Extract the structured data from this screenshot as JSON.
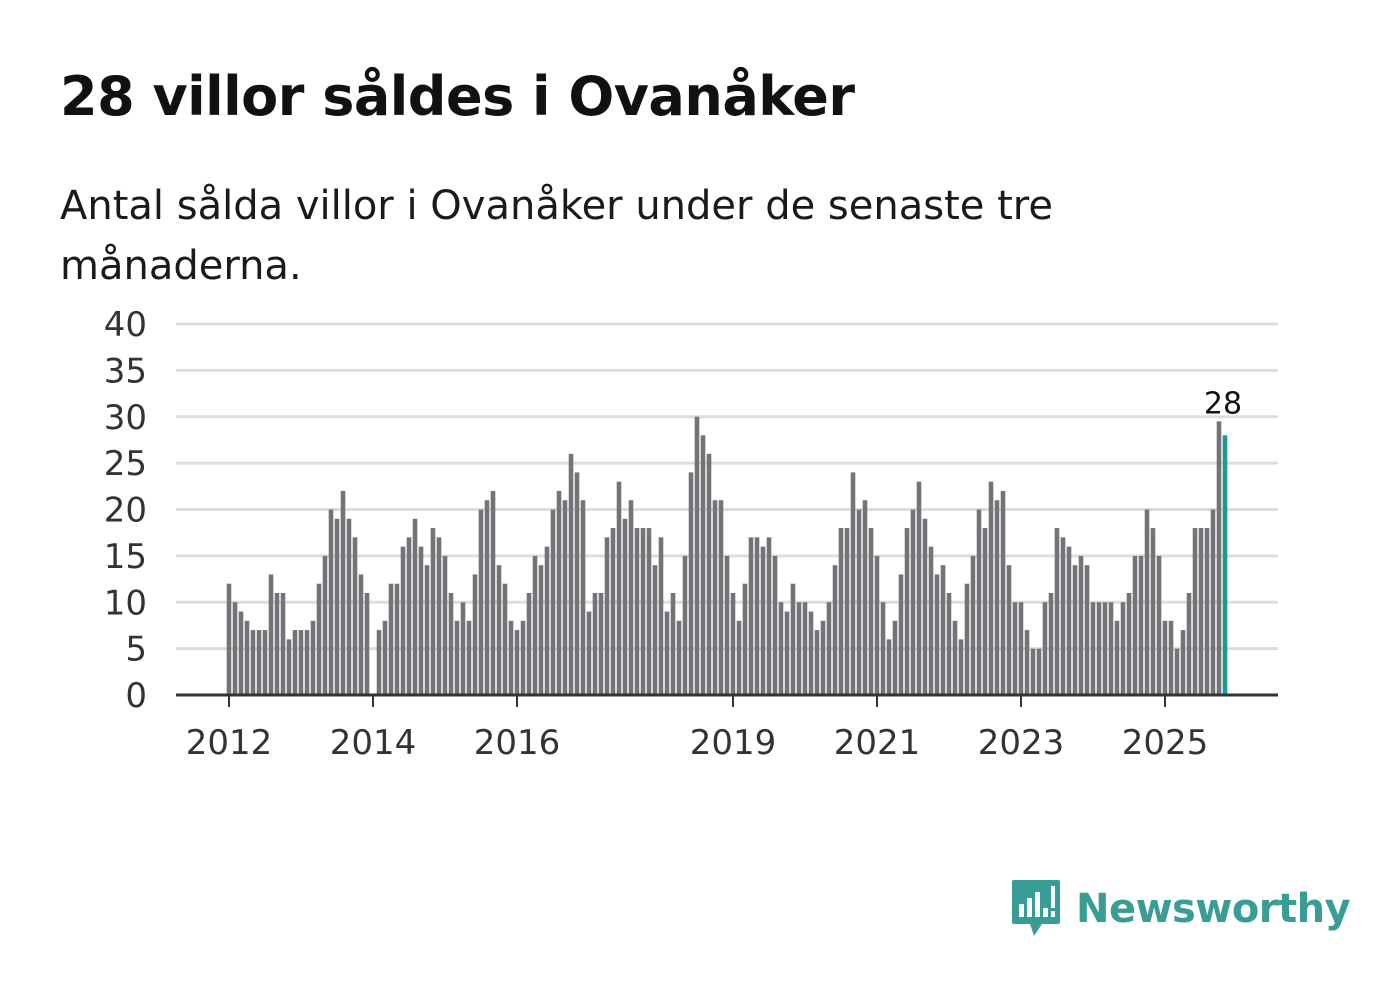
{
  "header": {
    "title": "28 villor såldes i Ovanåker",
    "subtitle": "Antal sålda villor i Ovanåker under de senaste tre månaderna."
  },
  "brand": {
    "name": "Newsworthy",
    "icon": "newsworthy-logo-icon",
    "color": "#3a9d95"
  },
  "colors": {
    "bar": "#747378",
    "highlight": "#1a9a95",
    "grid": "#dddddd",
    "axis": "#333333"
  },
  "chart_data": {
    "type": "bar",
    "title": "28 villor såldes i Ovanåker",
    "subtitle": "Antal sålda villor i Ovanåker under de senaste tre månaderna.",
    "xlabel": "",
    "ylabel": "",
    "ylim": [
      0,
      40
    ],
    "yticks": [
      "0",
      "5",
      "10",
      "15",
      "20",
      "25",
      "30",
      "35",
      "40"
    ],
    "grid": true,
    "x_tick_labels": [
      {
        "label": "2012",
        "index": 0
      },
      {
        "label": "2014",
        "index": 24
      },
      {
        "label": "2016",
        "index": 48
      },
      {
        "label": "2019",
        "index": 84
      },
      {
        "label": "2021",
        "index": 108
      },
      {
        "label": "2023",
        "index": 132
      },
      {
        "label": "2025",
        "index": 156
      }
    ],
    "x_start": "2012-01",
    "interval": "month",
    "values": [
      12,
      10,
      9,
      8,
      7,
      7,
      7,
      13,
      11,
      11,
      6,
      7,
      7,
      7,
      8,
      12,
      15,
      20,
      19,
      22,
      19,
      17,
      13,
      11,
      0,
      7,
      8,
      12,
      12,
      16,
      17,
      19,
      16,
      14,
      18,
      17,
      15,
      11,
      8,
      10,
      8,
      13,
      20,
      21,
      22,
      14,
      12,
      8,
      7,
      8,
      11,
      15,
      14,
      16,
      20,
      22,
      21,
      26,
      24,
      21,
      9,
      11,
      11,
      17,
      18,
      23,
      19,
      21,
      18,
      18,
      18,
      14,
      17,
      9,
      11,
      8,
      15,
      24,
      30,
      28,
      26,
      21,
      21,
      15,
      11,
      8,
      12,
      17,
      17,
      16,
      17,
      15,
      10,
      9,
      12,
      10,
      10,
      9,
      7,
      8,
      10,
      14,
      18,
      18,
      24,
      20,
      21,
      18,
      15,
      10,
      6,
      8,
      13,
      18,
      20,
      23,
      19,
      16,
      13,
      14,
      11,
      8,
      6,
      12,
      15,
      20,
      18,
      23,
      21,
      22,
      14,
      10,
      10,
      7,
      5,
      5,
      10,
      11,
      18,
      17,
      16,
      14,
      15,
      14,
      10,
      10,
      10,
      10,
      8,
      10,
      11,
      15,
      15,
      20,
      18,
      15,
      8,
      8,
      5,
      7,
      11,
      18,
      18,
      18,
      20,
      29.5,
      28
    ],
    "highlight_index": 166,
    "highlight_label": "28"
  }
}
